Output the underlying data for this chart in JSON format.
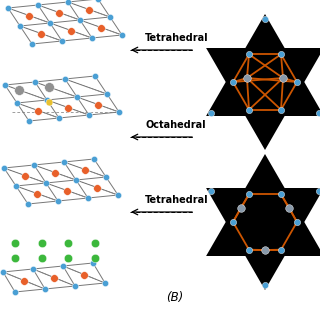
{
  "bg_color": "#ffffff",
  "label_B": "(B)",
  "labels": [
    "Tetrahedral",
    "Octahedral",
    "Tetrahedral"
  ],
  "text_color": "#000000",
  "blue": "#4a9fd4",
  "orange": "#e8602a",
  "green": "#3cb83c",
  "gray": "#909090",
  "yellow": "#e8c030",
  "black": "#000000",
  "dark_orange": "#cc5500",
  "line_gray": "#777777"
}
